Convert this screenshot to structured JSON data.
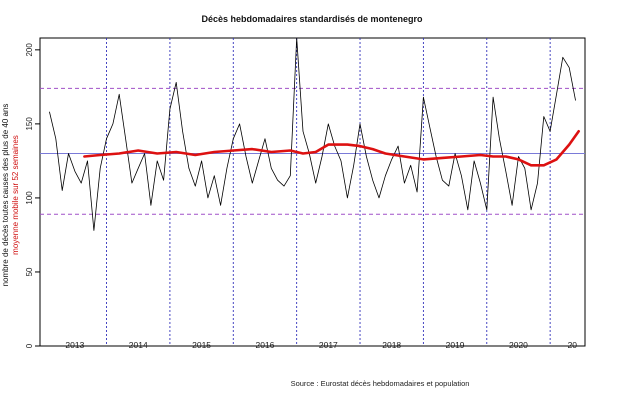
{
  "chart_data": {
    "type": "line",
    "title": "Décès hebdomadaires standardisés de montenegro",
    "ylabel": "nombre de décès toutes causes des plus de 40 ans",
    "ylabel2": "moyenne mobile sur 52 semaines",
    "source": "Source : Eurostat décès hebdomadaires et population",
    "ylim": [
      0,
      208
    ],
    "yticks": [
      0,
      50,
      100,
      150,
      200
    ],
    "xlim": [
      2012.45,
      2021.05
    ],
    "year_separators": [
      2013.5,
      2014.5,
      2015.5,
      2016.5,
      2017.5,
      2018.5,
      2019.5,
      2020.5
    ],
    "year_labels": [
      {
        "label": "2013",
        "x": 2013
      },
      {
        "label": "2014",
        "x": 2014
      },
      {
        "label": "2015",
        "x": 2015
      },
      {
        "label": "2016",
        "x": 2016
      },
      {
        "label": "2017",
        "x": 2017
      },
      {
        "label": "2018",
        "x": 2018
      },
      {
        "label": "2019",
        "x": 2019
      },
      {
        "label": "2020",
        "x": 2020
      },
      {
        "label": "20",
        "x": 2020.85
      }
    ],
    "reference_lines": {
      "upper": 174,
      "mean": 130,
      "lower": 89
    },
    "series": [
      {
        "name": "décès hebdomadaires",
        "color": "#000000",
        "x": [
          2012.6,
          2012.7,
          2012.8,
          2012.9,
          2013.0,
          2013.1,
          2013.2,
          2013.3,
          2013.4,
          2013.5,
          2013.6,
          2013.7,
          2013.8,
          2013.9,
          2014.0,
          2014.1,
          2014.2,
          2014.3,
          2014.4,
          2014.5,
          2014.6,
          2014.7,
          2014.8,
          2014.9,
          2015.0,
          2015.1,
          2015.2,
          2015.3,
          2015.4,
          2015.5,
          2015.6,
          2015.7,
          2015.8,
          2015.9,
          2016.0,
          2016.1,
          2016.2,
          2016.3,
          2016.4,
          2016.5,
          2016.6,
          2016.7,
          2016.8,
          2016.9,
          2017.0,
          2017.1,
          2017.2,
          2017.3,
          2017.4,
          2017.5,
          2017.6,
          2017.7,
          2017.8,
          2017.9,
          2018.0,
          2018.1,
          2018.2,
          2018.3,
          2018.4,
          2018.5,
          2018.6,
          2018.7,
          2018.8,
          2018.9,
          2019.0,
          2019.1,
          2019.2,
          2019.3,
          2019.4,
          2019.5,
          2019.6,
          2019.7,
          2019.8,
          2019.9,
          2020.0,
          2020.1,
          2020.2,
          2020.3,
          2020.4,
          2020.5,
          2020.6,
          2020.7,
          2020.8,
          2020.9
        ],
        "values": [
          158,
          140,
          105,
          130,
          118,
          110,
          125,
          78,
          120,
          140,
          150,
          170,
          140,
          110,
          120,
          130,
          95,
          125,
          112,
          160,
          178,
          145,
          120,
          108,
          125,
          100,
          115,
          95,
          120,
          140,
          150,
          128,
          110,
          125,
          140,
          120,
          112,
          108,
          115,
          208,
          145,
          130,
          110,
          128,
          150,
          135,
          125,
          100,
          122,
          150,
          128,
          112,
          100,
          115,
          126,
          135,
          110,
          122,
          104,
          168,
          148,
          128,
          112,
          108,
          130,
          115,
          92,
          125,
          110,
          92,
          168,
          140,
          118,
          95,
          128,
          120,
          92,
          110,
          155,
          145,
          170,
          195,
          188,
          166
        ]
      },
      {
        "name": "moyenne mobile sur 52 semaines",
        "color": "#dd1111",
        "x": [
          2013.15,
          2013.4,
          2013.7,
          2014.0,
          2014.3,
          2014.6,
          2014.9,
          2015.2,
          2015.5,
          2015.8,
          2016.1,
          2016.4,
          2016.6,
          2016.8,
          2017.0,
          2017.3,
          2017.5,
          2017.7,
          2017.9,
          2018.2,
          2018.5,
          2018.8,
          2019.1,
          2019.4,
          2019.6,
          2019.8,
          2020.0,
          2020.2,
          2020.4,
          2020.6,
          2020.8,
          2020.95
        ],
        "values": [
          128,
          129,
          130,
          132,
          130,
          131,
          129,
          131,
          132,
          133,
          131,
          132,
          130,
          131,
          136,
          136,
          135,
          133,
          130,
          128,
          126,
          127,
          128,
          129,
          128,
          128,
          126,
          122,
          122,
          126,
          136,
          145
        ]
      }
    ]
  }
}
